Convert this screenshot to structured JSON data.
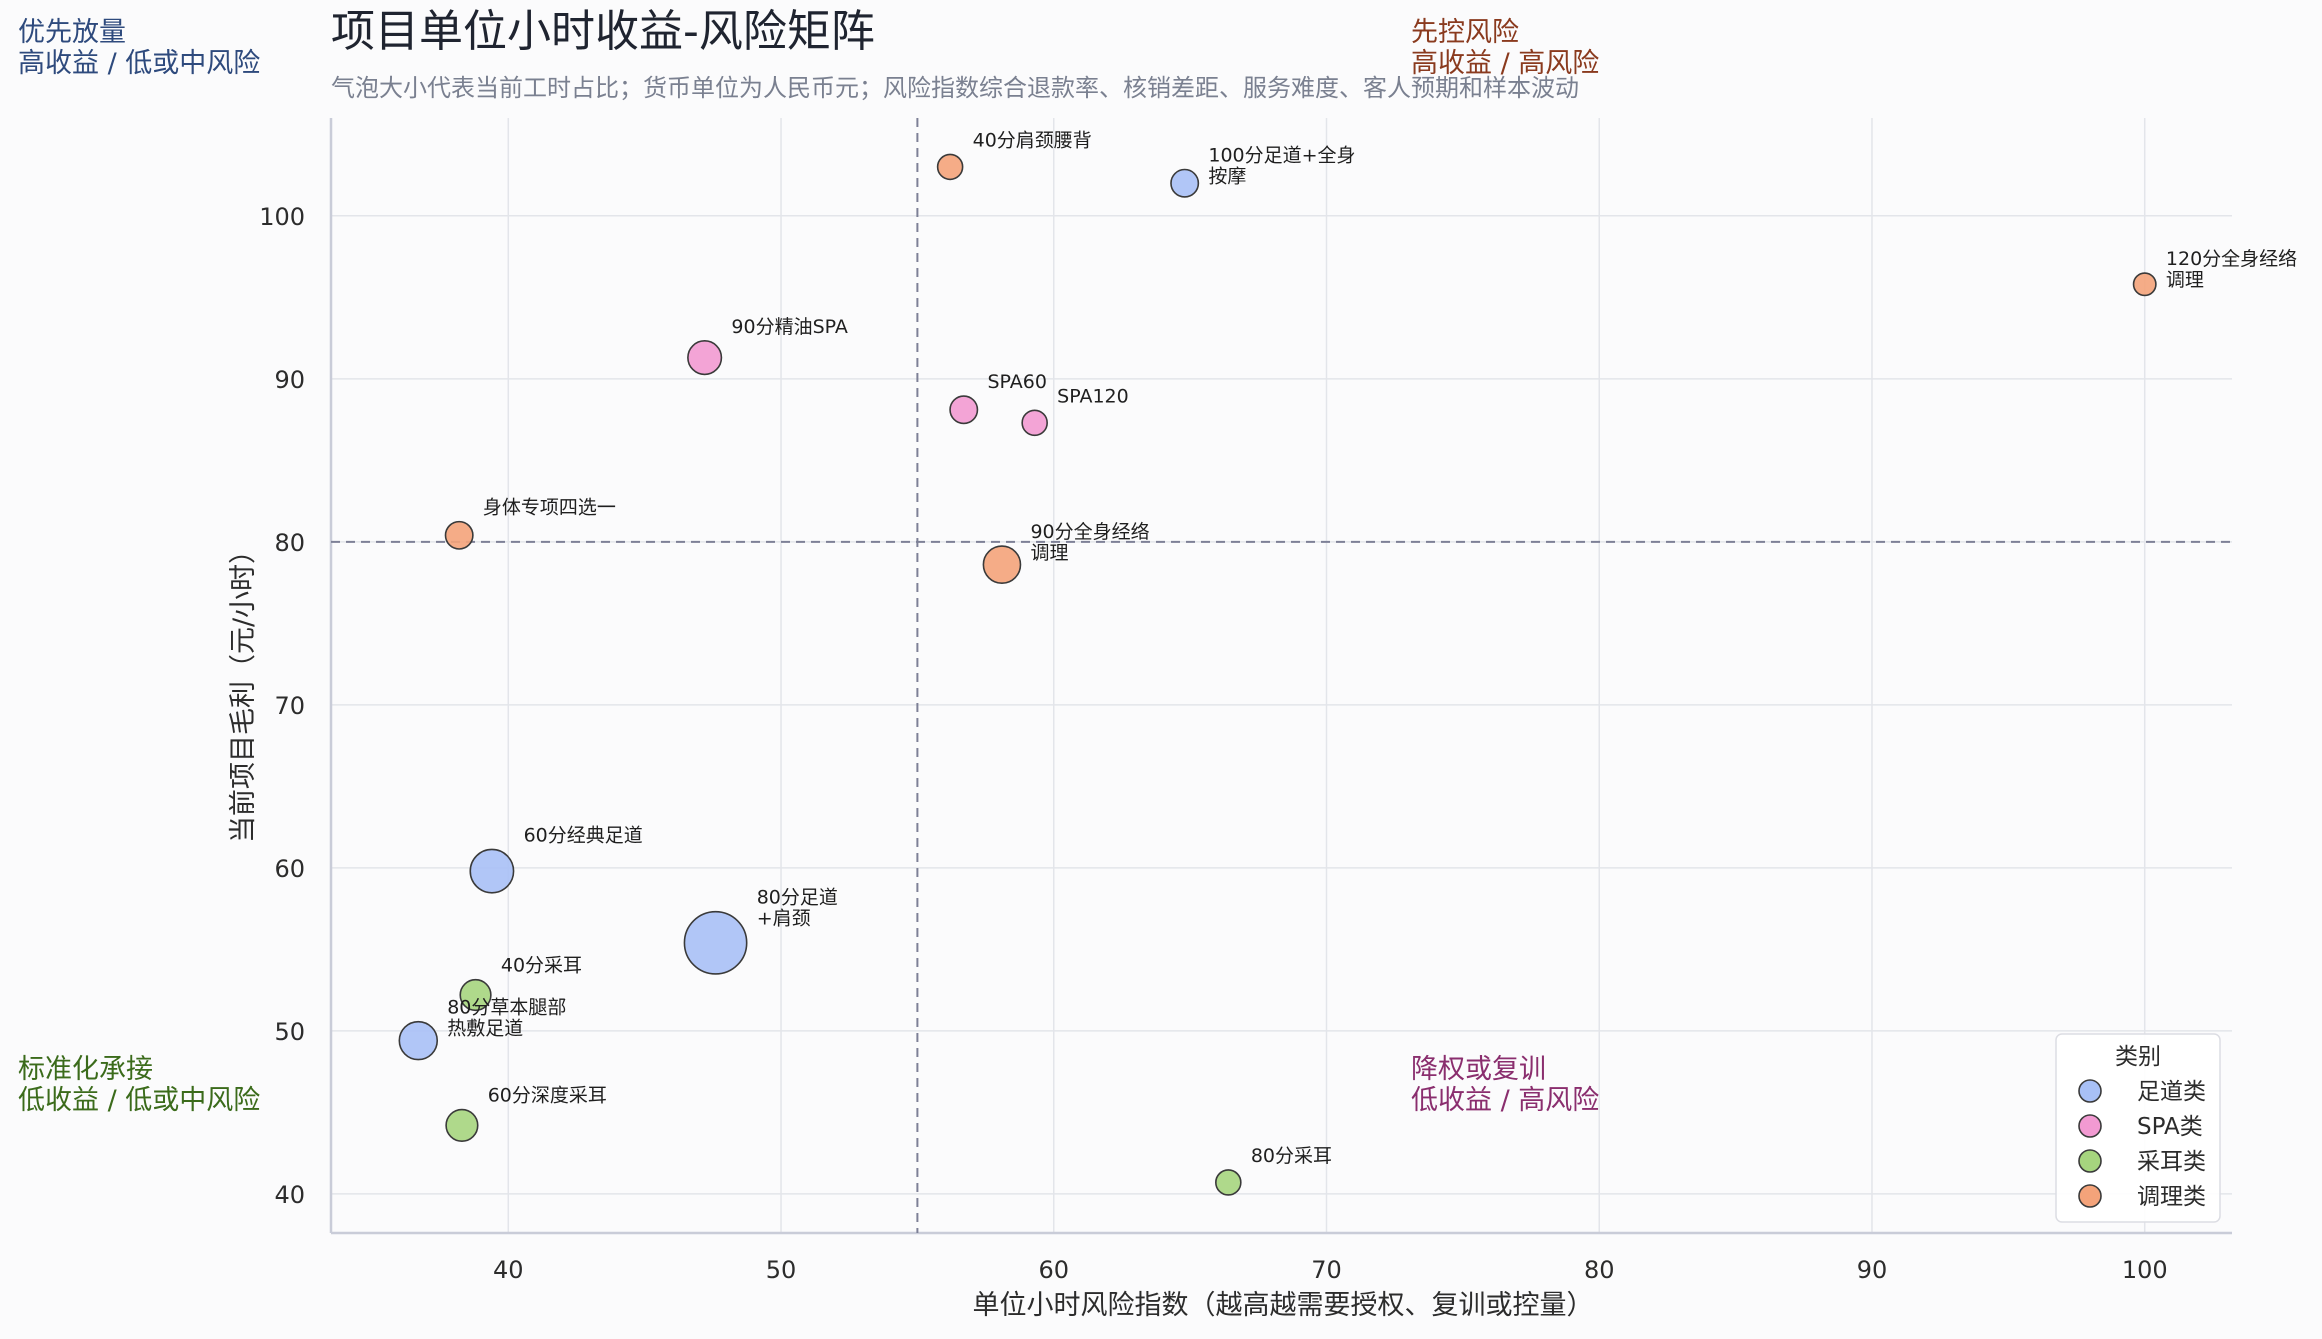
{
  "chart_data": {
    "type": "scatter",
    "title": "项目单位小时收益-风险矩阵",
    "subtitle": "气泡大小代表当前工时占比；货币单位为人民币元；风险指数综合退款率、核销差距、服务难度、客人预期和样本波动",
    "xlabel": "单位小时风险指数（越高越需要授权、复训或控量）",
    "ylabel": "当前项目毛利（元/小时）",
    "xlim": [
      33.5,
      103.2
    ],
    "ylim": [
      37.6,
      106
    ],
    "xticks": [
      40,
      50,
      60,
      70,
      80,
      90,
      100
    ],
    "yticks": [
      40,
      50,
      60,
      70,
      80,
      90,
      100
    ],
    "grid": true,
    "threshold": {
      "x": 55,
      "y": 80
    },
    "quadrants": [
      {
        "key": "top-left",
        "lines": [
          "优先放量",
          "高收益 / 低或中风险"
        ],
        "color": "#2e4a7d"
      },
      {
        "key": "top-right",
        "lines": [
          "先控风险",
          "高收益 / 高风险"
        ],
        "color": "#8a3a1e"
      },
      {
        "key": "bottom-left",
        "lines": [
          "标准化承接",
          "低收益 / 低或中风险"
        ],
        "color": "#3b6b1b"
      },
      {
        "key": "bottom-right",
        "lines": [
          "降权或复训",
          "低收益 / 高风险"
        ],
        "color": "#8a2e6e"
      }
    ],
    "legend": {
      "title": "类别",
      "position": "bottom-right",
      "items": [
        {
          "name": "足道类",
          "color": "#a8c0f6"
        },
        {
          "name": "SPA类",
          "color": "#f29ad2"
        },
        {
          "name": "采耳类",
          "color": "#a6d57e"
        },
        {
          "name": "调理类",
          "color": "#f4a37a"
        }
      ]
    },
    "points": [
      {
        "label": [
          "40分肩颈腰背"
        ],
        "x": 56.2,
        "y": 103,
        "category": "调理类",
        "share": 1.0
      },
      {
        "label": [
          "100分足道+全身",
          "按摩"
        ],
        "x": 64.8,
        "y": 102,
        "category": "足道类",
        "share": 1.2
      },
      {
        "label": [
          "120分全身经络",
          "调理"
        ],
        "x": 100,
        "y": 95.8,
        "category": "调理类",
        "share": 0.8
      },
      {
        "label": [
          "90分精油SPA"
        ],
        "x": 47.2,
        "y": 91.3,
        "category": "SPA类",
        "share": 1.8
      },
      {
        "label": [
          "SPA60"
        ],
        "x": 56.7,
        "y": 88.1,
        "category": "SPA类",
        "share": 1.2
      },
      {
        "label": [
          "SPA120"
        ],
        "x": 59.3,
        "y": 87.3,
        "category": "SPA类",
        "share": 1.0
      },
      {
        "label": [
          "身体专项四选一"
        ],
        "x": 38.2,
        "y": 80.4,
        "category": "调理类",
        "share": 1.2
      },
      {
        "label": [
          "90分全身经络",
          "调理"
        ],
        "x": 58.1,
        "y": 78.6,
        "category": "调理类",
        "share": 2.2
      },
      {
        "label": [
          "60分经典足道"
        ],
        "x": 39.4,
        "y": 59.8,
        "category": "足道类",
        "share": 3.0
      },
      {
        "label": [
          "80分足道",
          "+肩颈"
        ],
        "x": 47.6,
        "y": 55.4,
        "category": "足道类",
        "share": 6.2
      },
      {
        "label": [
          "40分采耳"
        ],
        "x": 38.8,
        "y": 52.2,
        "category": "采耳类",
        "share": 1.5
      },
      {
        "label": [
          "80分草本腿部",
          "热敷足道"
        ],
        "x": 36.7,
        "y": 49.4,
        "category": "足道类",
        "share": 2.3
      },
      {
        "label": [
          "60分深度采耳"
        ],
        "x": 38.3,
        "y": 44.2,
        "category": "采耳类",
        "share": 1.6
      },
      {
        "label": [
          "80分采耳"
        ],
        "x": 66.4,
        "y": 40.7,
        "category": "采耳类",
        "share": 1.0
      }
    ]
  }
}
